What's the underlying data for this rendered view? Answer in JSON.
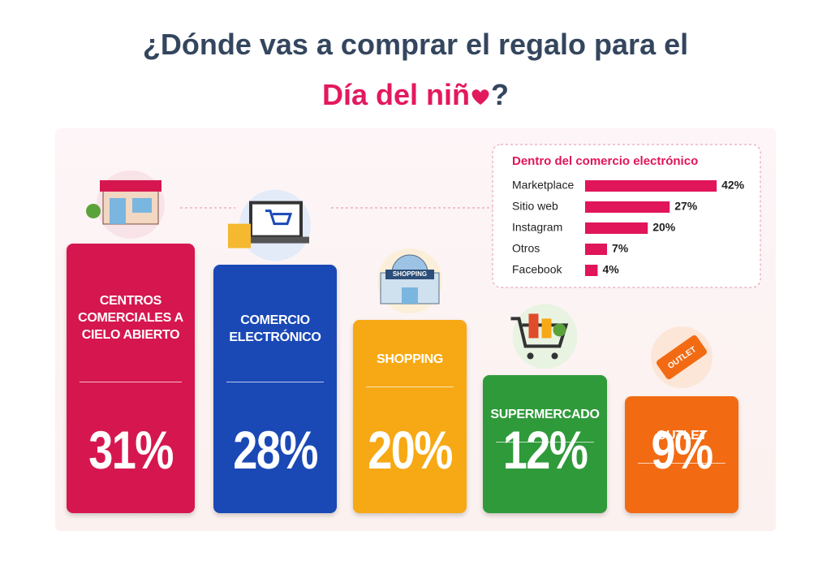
{
  "chart_data": [
    {
      "type": "bar",
      "title": "¿Dónde vas a comprar el regalo para el",
      "title_highlight": "Día del niñ",
      "title_end": "?",
      "categories": [
        "CENTROS COMERCIALES A CIELO ABIERTO",
        "COMERCIO ELECTRÓNICO",
        "SHOPPING",
        "SUPERMERCADO",
        "OUTLET"
      ],
      "values": [
        31,
        28,
        20,
        12,
        9
      ],
      "value_labels": [
        "31%",
        "28%",
        "20%",
        "12%",
        "9%"
      ],
      "colors": [
        "#d6174f",
        "#1a49b6",
        "#f6a914",
        "#2f9a3a",
        "#f26b13"
      ],
      "icon_labels": [
        null,
        null,
        "SHOPPING",
        null,
        "OUTLET"
      ]
    },
    {
      "type": "hbar",
      "title": "Dentro del comercio electrónico",
      "categories": [
        "Marketplace",
        "Sitio web",
        "Instagram",
        "Otros",
        "Facebook"
      ],
      "values": [
        42,
        27,
        20,
        7,
        4
      ],
      "value_labels": [
        "42%",
        "27%",
        "20%",
        "7%",
        "4%"
      ],
      "color": "#e0155a"
    }
  ]
}
